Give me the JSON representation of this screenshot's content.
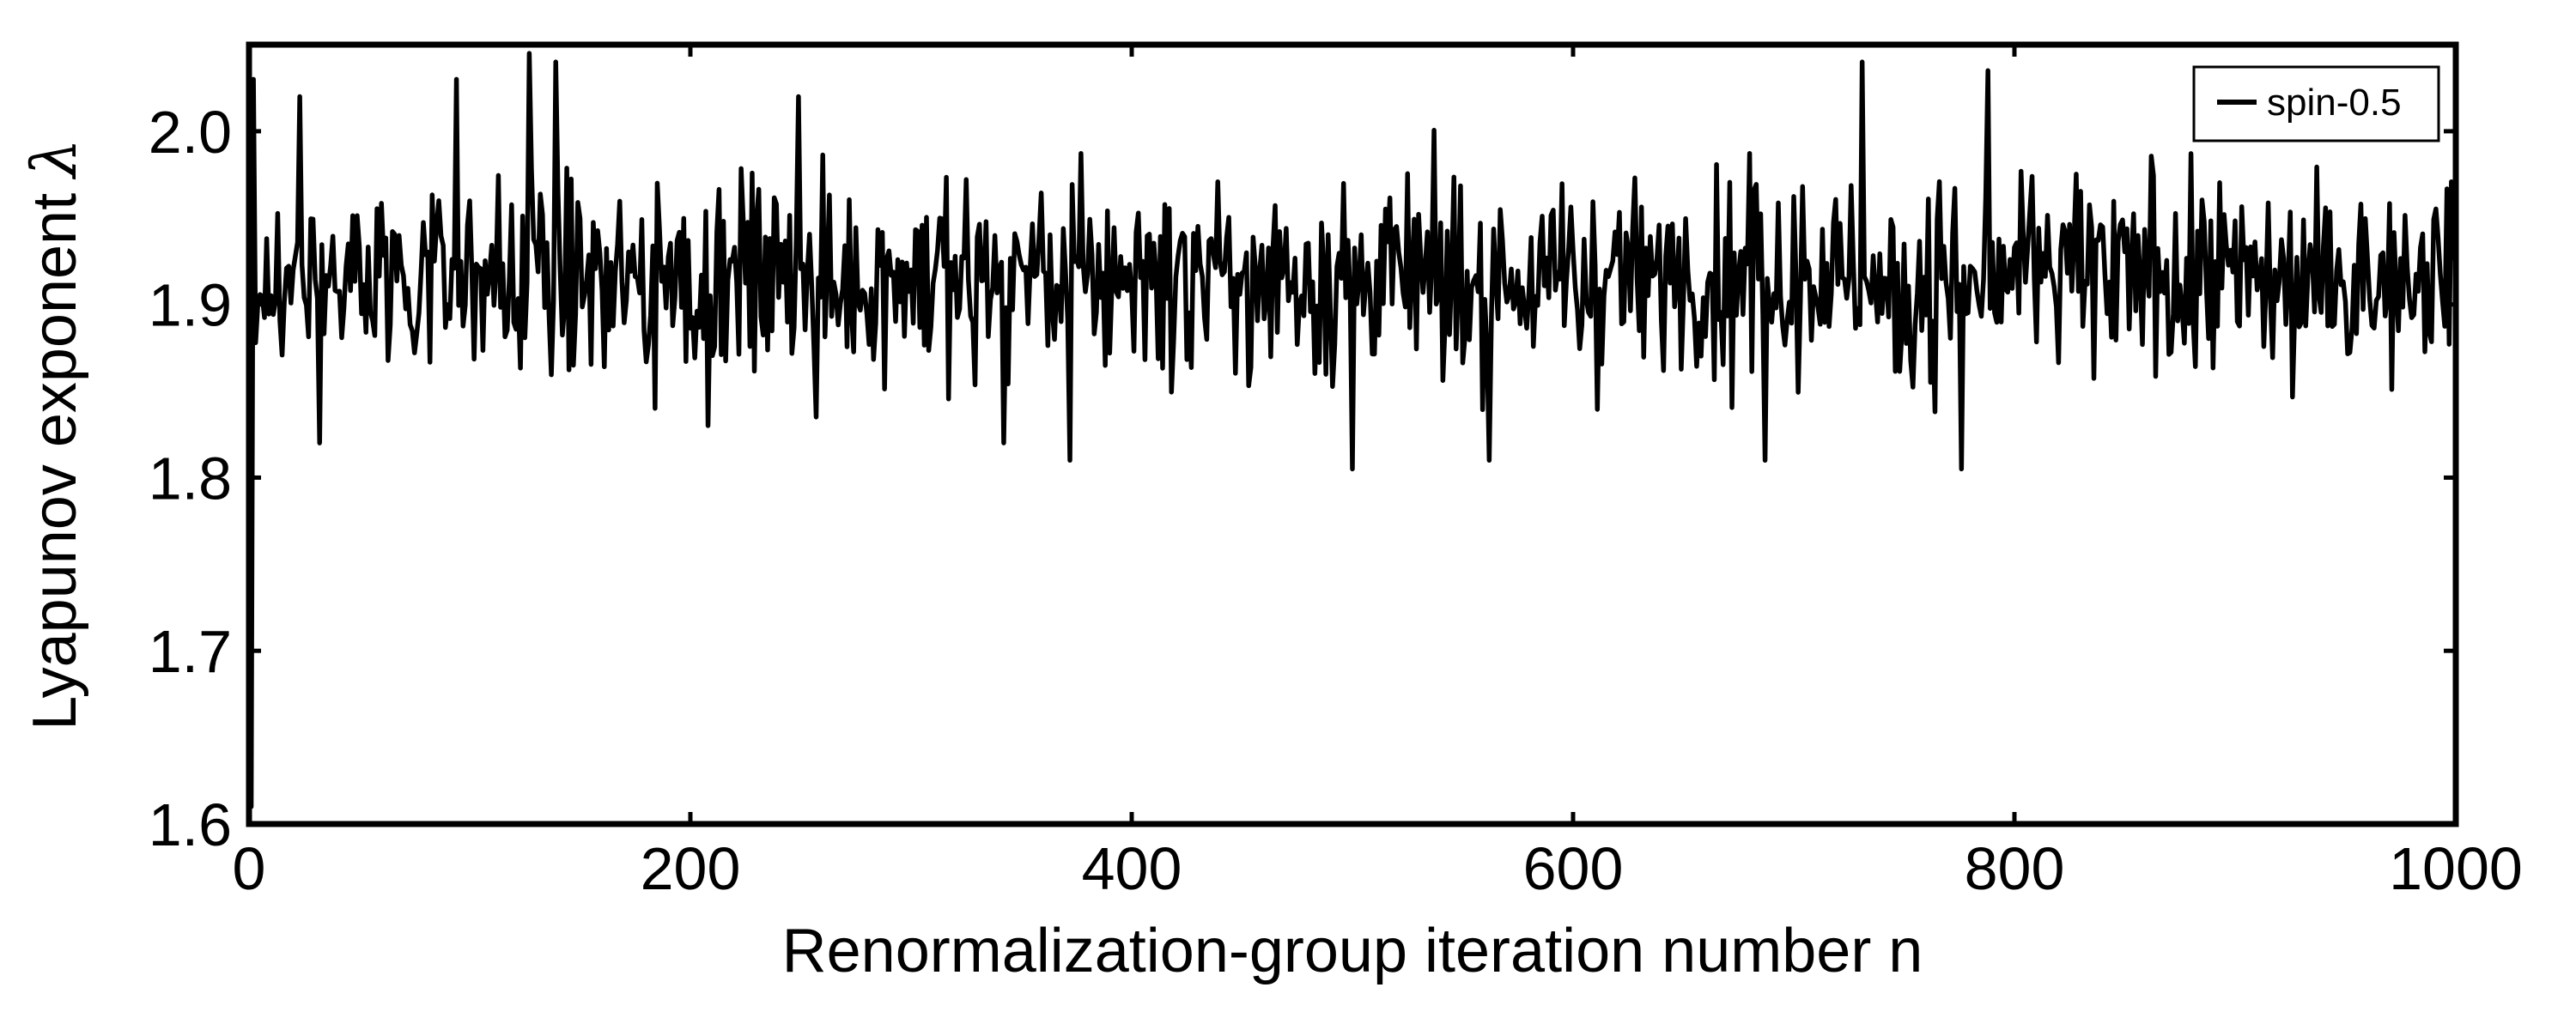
{
  "chart_data": {
    "type": "line",
    "title": "",
    "xlabel": "Renormalization-group iteration number n",
    "ylabel": "Lyapunov exponent",
    "ylabel_symbol": "λ",
    "xlim": [
      0,
      1000
    ],
    "ylim": [
      1.6,
      2.05
    ],
    "xticks": [
      0,
      200,
      400,
      600,
      800,
      1000
    ],
    "xtick_labels": [
      "0",
      "200",
      "400",
      "600",
      "800",
      "1000"
    ],
    "yticks": [
      1.6,
      1.7,
      1.8,
      1.9,
      2.0
    ],
    "ytick_labels": [
      "1.6",
      "1.7",
      "1.8",
      "1.9",
      "2.0"
    ],
    "grid": false,
    "legend_position": "top-right",
    "series": [
      {
        "name": "spin-0.5",
        "color": "#000000",
        "description": "Noisy trace starting near 1.61 at n=1, jumping to ~1.92 and fluctuating roughly between 1.81 and 2.04 around a mean of ~1.915 for n=1..1000",
        "x_start": 1,
        "x_end": 1000,
        "start_value": 1.61,
        "mean": 1.915,
        "min": 1.805,
        "max": 2.045,
        "notable_points": [
          {
            "x": 1,
            "y": 1.61
          },
          {
            "x": 2,
            "y": 2.03
          },
          {
            "x": 4,
            "y": 1.9
          },
          {
            "x": 23,
            "y": 2.02
          },
          {
            "x": 32,
            "y": 1.82
          },
          {
            "x": 94,
            "y": 2.03
          },
          {
            "x": 127,
            "y": 2.045
          },
          {
            "x": 139,
            "y": 2.04
          },
          {
            "x": 184,
            "y": 1.84
          },
          {
            "x": 208,
            "y": 1.83
          },
          {
            "x": 249,
            "y": 2.02
          },
          {
            "x": 257,
            "y": 1.835
          },
          {
            "x": 342,
            "y": 1.82
          },
          {
            "x": 372,
            "y": 1.81
          },
          {
            "x": 500,
            "y": 1.805
          },
          {
            "x": 562,
            "y": 1.81
          },
          {
            "x": 687,
            "y": 1.81
          },
          {
            "x": 731,
            "y": 2.04
          },
          {
            "x": 776,
            "y": 1.805
          },
          {
            "x": 788,
            "y": 2.035
          },
          {
            "x": 1000,
            "y": 1.92
          }
        ]
      }
    ]
  }
}
